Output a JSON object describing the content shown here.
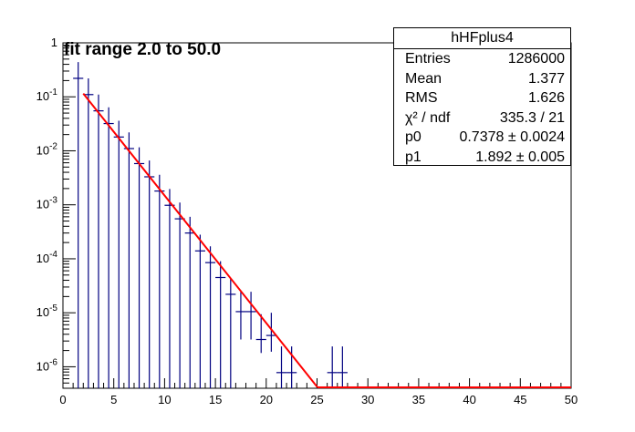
{
  "chart_data": {
    "type": "scatter",
    "title": "",
    "annotation": "fit range 2.0 to 50.0",
    "xlabel": "",
    "ylabel": "",
    "xlim": [
      0,
      50
    ],
    "ylim": [
      4e-07,
      1
    ],
    "y_scale": "log",
    "x_ticks": [
      0,
      5,
      10,
      15,
      20,
      25,
      30,
      35,
      40,
      45,
      50
    ],
    "y_ticks": [
      "10^-6",
      "10^-5",
      "10^-4",
      "10^-3",
      "10^-2",
      "10^-1",
      "1"
    ],
    "grid": false,
    "series": [
      {
        "name": "hHFplus4",
        "style": "histogram-errorbars",
        "color": "#000080",
        "bin_width": 1,
        "x": [
          1.5,
          2.5,
          3.5,
          4.5,
          5.5,
          6.5,
          7.5,
          8.5,
          9.5,
          10.5,
          11.5,
          12.5,
          13.5,
          14.5,
          15.5,
          16.5,
          17.5,
          18.5,
          19.5,
          20.5,
          21.5,
          22.5,
          26.5,
          27.5
        ],
        "y": [
          0.22,
          0.11,
          0.055,
          0.032,
          0.018,
          0.011,
          0.0058,
          0.0033,
          0.0018,
          0.00098,
          0.00055,
          0.0003,
          0.00014,
          8.5e-05,
          4.5e-05,
          2.2e-05,
          1.05e-05,
          1.05e-05,
          3.2e-06,
          3.8e-06,
          7.8e-07,
          7.8e-07,
          7.8e-07,
          7.8e-07
        ],
        "err_hi": [
          0.22,
          0.11,
          0.055,
          0.032,
          0.018,
          0.011,
          0.0058,
          0.0033,
          0.0018,
          0.00098,
          0.00055,
          0.0003,
          0.00014,
          8.5e-05,
          4.5e-05,
          2.2e-05,
          1.4e-05,
          1.4e-05,
          6.2e-06,
          6.2e-06,
          1.6e-06,
          1.6e-06,
          1.6e-06,
          1.6e-06
        ],
        "err_lo": [
          0.22,
          0.11,
          0.055,
          0.032,
          0.018,
          0.011,
          0.0058,
          0.0033,
          0.0018,
          0.00098,
          0.00055,
          0.0003,
          0.00014,
          8.5e-05,
          4.5e-05,
          2.2e-05,
          7.3e-06,
          7.3e-06,
          1.4e-06,
          1.9e-06,
          4e-07,
          4e-07,
          4e-07,
          4e-07
        ]
      },
      {
        "name": "fit",
        "style": "line",
        "color": "#ff0000",
        "x": [
          2,
          25.03
        ],
        "y": [
          0.115,
          4.2e-07
        ]
      }
    ]
  },
  "stats_box": {
    "title": "hHFplus4",
    "rows": [
      {
        "key": "Entries",
        "value": "1286000"
      },
      {
        "key": "Mean",
        "value": "1.377"
      },
      {
        "key": "RMS",
        "value": "1.626"
      },
      {
        "key": "χ² / ndf",
        "value": "335.3 / 21"
      },
      {
        "key": "p0",
        "value": "0.7378 ± 0.0024"
      },
      {
        "key": "p1",
        "value": "1.892 ± 0.005"
      }
    ]
  },
  "colors": {
    "data": "#000080",
    "fit": "#ff0000",
    "axis": "#000000",
    "background": "#ffffff"
  }
}
